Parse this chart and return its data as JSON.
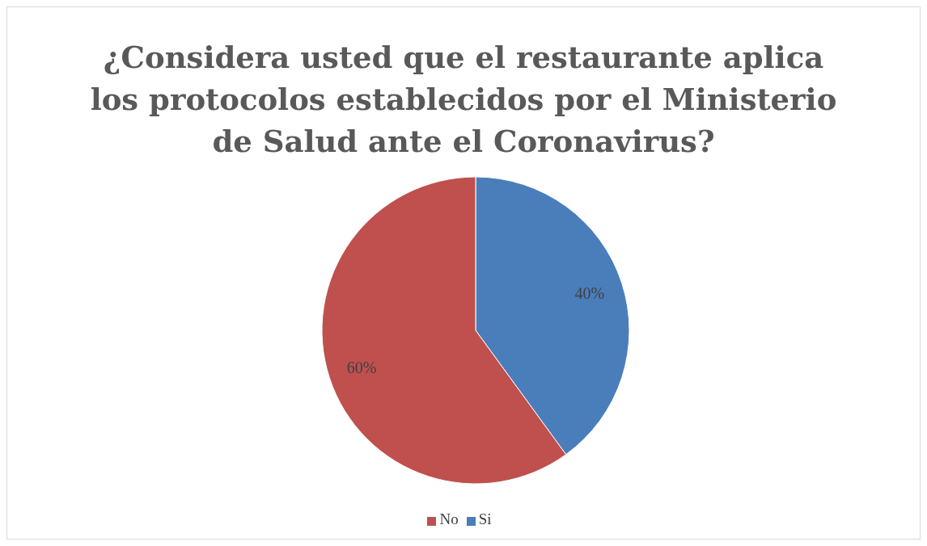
{
  "chart_data": {
    "type": "pie",
    "title": "¿Considera usted que el restaurante aplica los protocolos establecidos por el Ministerio de Salud ante el Coronavirus?",
    "categories": [
      "Si",
      "No"
    ],
    "values": [
      40,
      60
    ],
    "value_labels": [
      "40%",
      "60%"
    ],
    "colors": [
      "#4a7ebb",
      "#c0504d"
    ],
    "legend": "bottom"
  }
}
